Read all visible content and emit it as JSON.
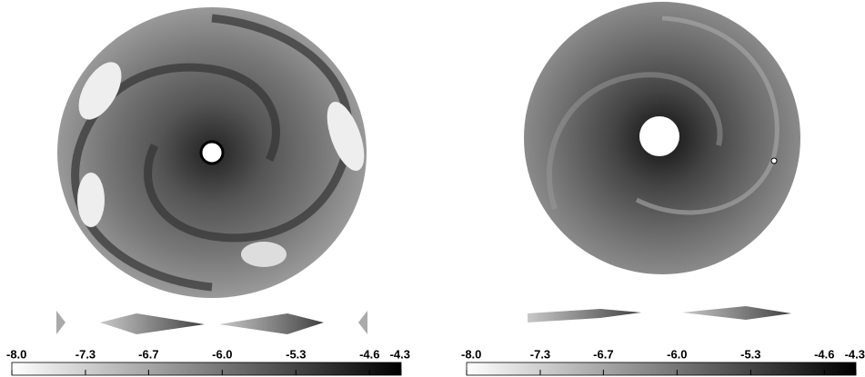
{
  "panels": [
    {
      "colorbar": {
        "lim": [
          -8.0,
          -4.3
        ],
        "colors": [
          "#ffffff",
          "#000000"
        ],
        "ticks": [
          {
            "value": -8.0,
            "label": "-8.0"
          },
          {
            "value": -7.3,
            "label": "-7.3"
          },
          {
            "value": -6.7,
            "label": "-6.7"
          },
          {
            "value": -6.0,
            "label": "-6.0"
          },
          {
            "value": -5.3,
            "label": "-5.3"
          },
          {
            "value": -4.6,
            "label": "-4.6"
          },
          {
            "value": -4.3,
            "label": "-4.3"
          }
        ]
      }
    },
    {
      "colorbar": {
        "lim": [
          -8.0,
          -4.3
        ],
        "colors": [
          "#ffffff",
          "#000000"
        ],
        "ticks": [
          {
            "value": -8.0,
            "label": "-8.0"
          },
          {
            "value": -7.3,
            "label": "-7.3"
          },
          {
            "value": -6.7,
            "label": "-6.7"
          },
          {
            "value": -6.0,
            "label": "-6.0"
          },
          {
            "value": -5.3,
            "label": "-5.3"
          },
          {
            "value": -4.6,
            "label": "-4.6"
          },
          {
            "value": -4.3,
            "label": "-4.3"
          }
        ]
      }
    }
  ]
}
